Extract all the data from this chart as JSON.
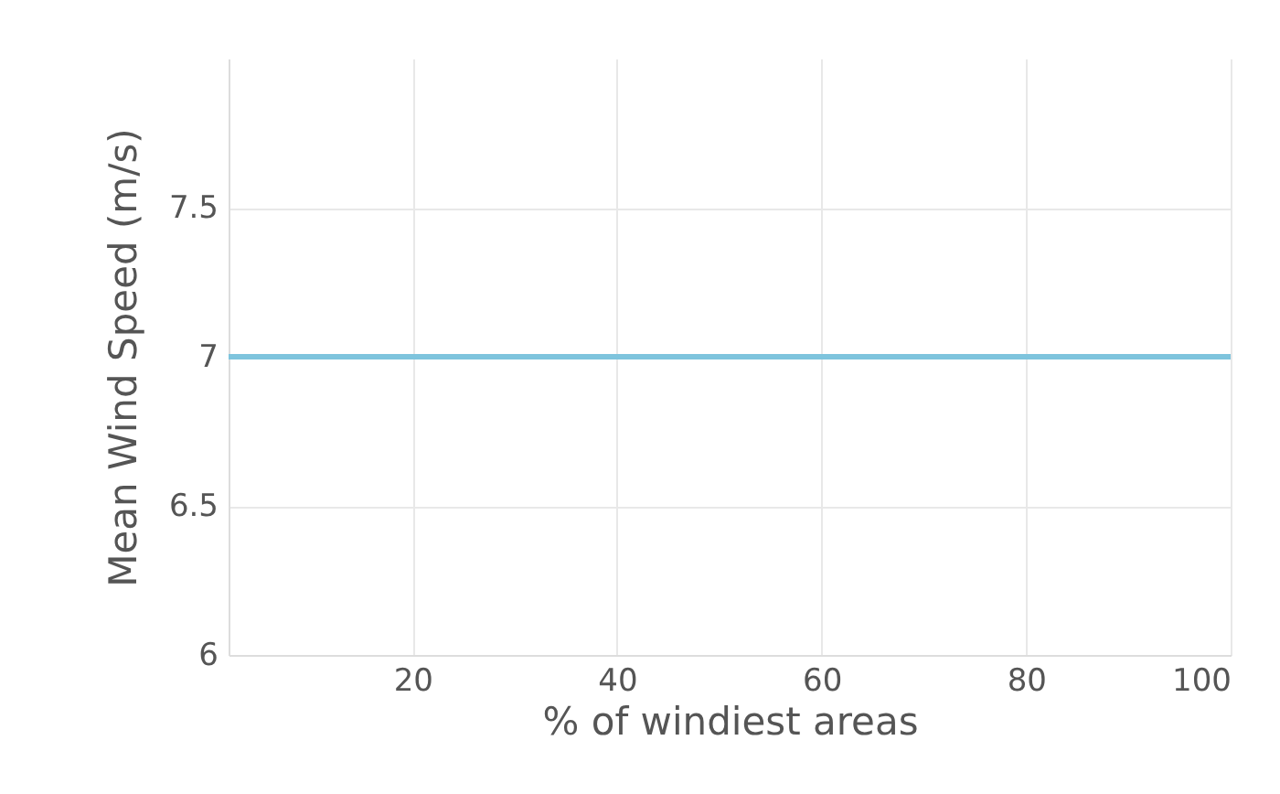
{
  "chart_data": {
    "type": "line",
    "xlabel": "% of windiest areas",
    "ylabel": "Mean Wind Speed (m/s)",
    "x": [
      2,
      100
    ],
    "series": [
      {
        "color": "#7ec4dd",
        "values": [
          7,
          7
        ]
      }
    ],
    "xlim": [
      2,
      100
    ],
    "xticks": [
      20,
      40,
      60,
      80,
      100
    ],
    "ylim": [
      6,
      8
    ],
    "yticks": [
      6,
      6.5,
      7,
      7.5
    ],
    "grid": true,
    "marker": "none",
    "line_style": "solid"
  }
}
